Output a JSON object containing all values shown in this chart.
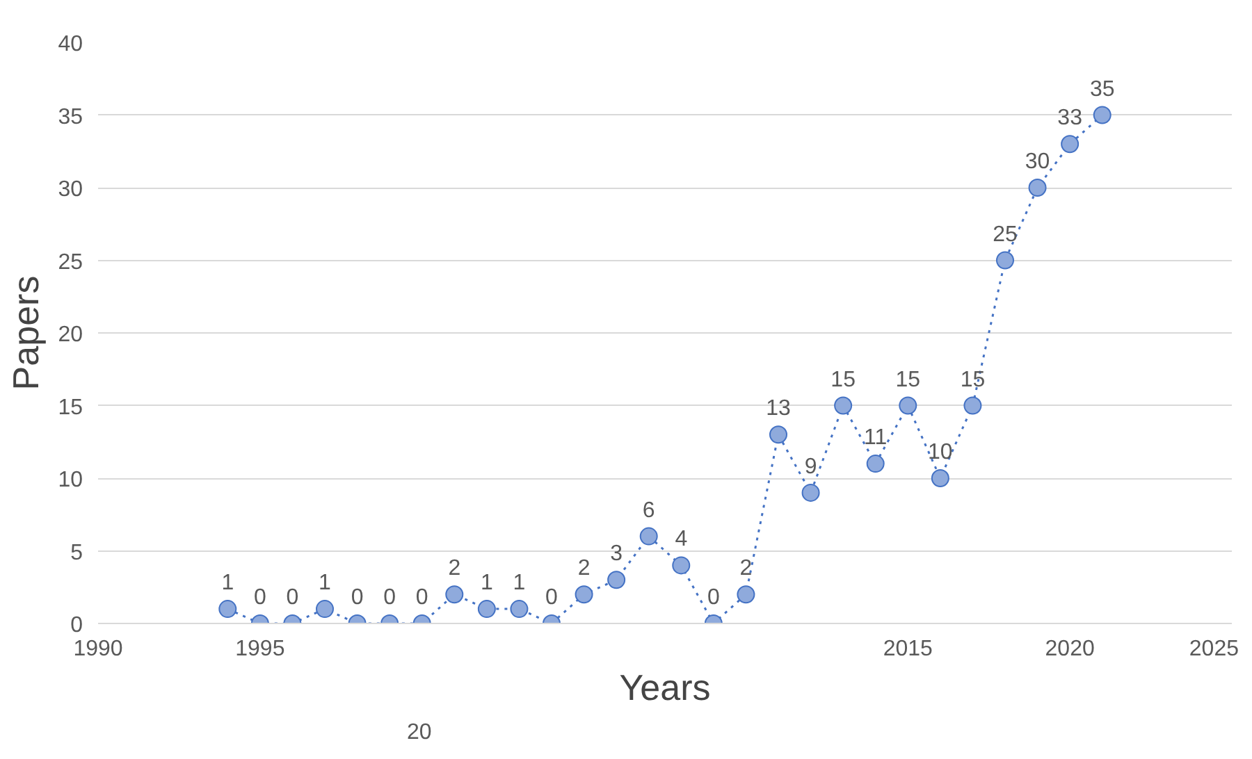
{
  "chart_data": {
    "type": "line",
    "xlabel": "Years",
    "ylabel": "Papers",
    "x": [
      1994,
      1995,
      1996,
      1997,
      1998,
      1999,
      2000,
      2001,
      2002,
      2003,
      2004,
      2005,
      2006,
      2007,
      2008,
      2009,
      2010,
      2011,
      2012,
      2013,
      2014,
      2015,
      2016,
      2017,
      2018,
      2019,
      2020,
      2021
    ],
    "series": [
      {
        "color": "#4472c4",
        "values": [
          1,
          0,
          0,
          1,
          0,
          0,
          0,
          2,
          1,
          1,
          0,
          2,
          3,
          6,
          4,
          0,
          2,
          13,
          9,
          15,
          11,
          15,
          10,
          15,
          25,
          30,
          33,
          35
        ]
      }
    ],
    "xlim": [
      1990,
      2025
    ],
    "xticks": [
      1990,
      1995,
      2015,
      2020,
      2025
    ],
    "annotations": [
      "20"
    ],
    "ylim": [
      0,
      40
    ],
    "yticks": [
      0,
      5,
      10,
      15,
      20,
      25,
      30,
      35,
      40
    ],
    "grid": "y",
    "marker": "circle",
    "line_style": "dotted",
    "data_labels": true
  }
}
